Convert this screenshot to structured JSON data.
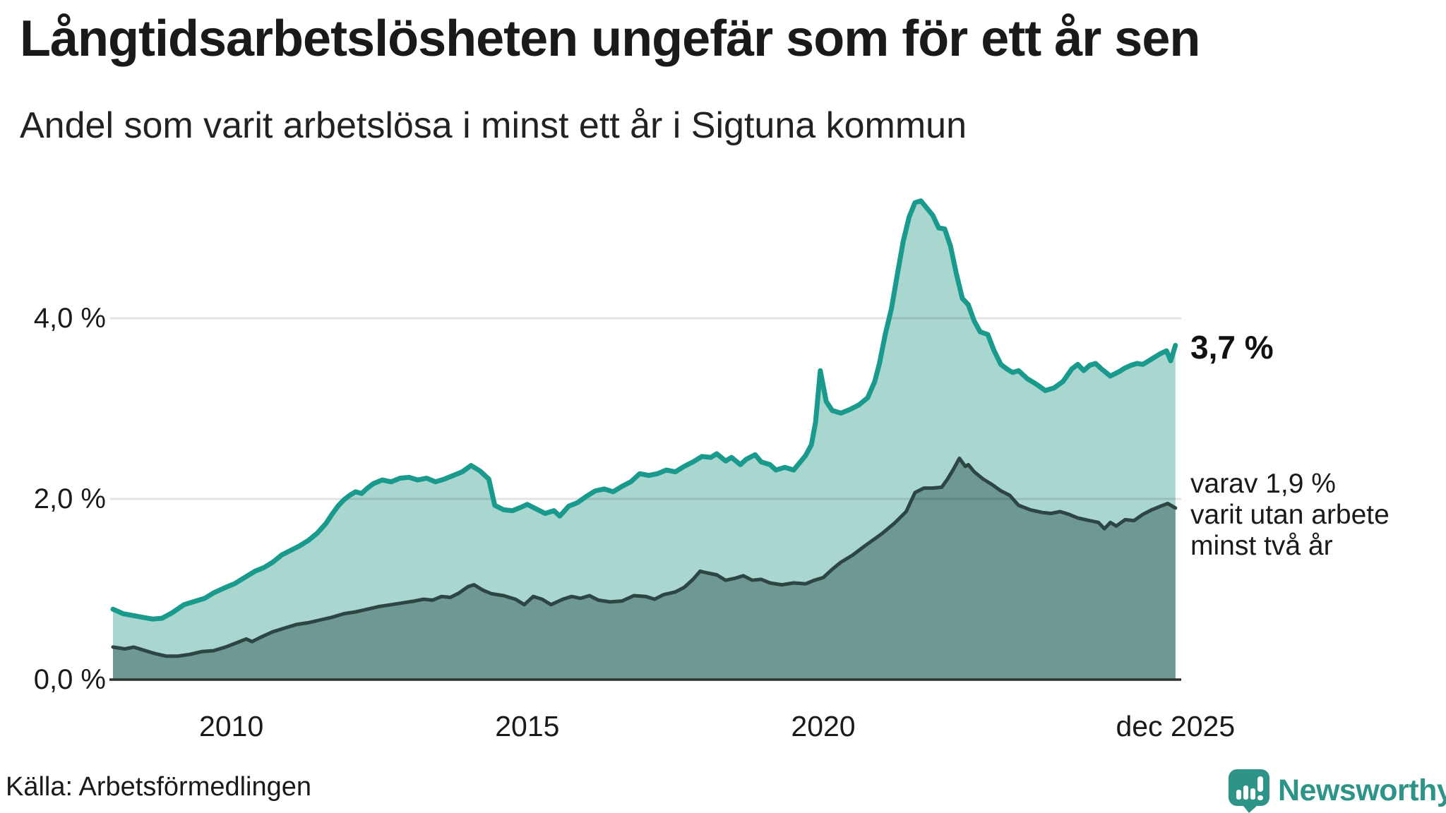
{
  "header": {
    "title": "Långtidsarbetslösheten ungefär som för ett år sen",
    "subtitle": "Andel som varit arbetslösa i minst ett år i Sigtuna kommun"
  },
  "annotations": {
    "latest_value": "3,7 %",
    "secondary": "varav 1,9 %\nvarit utan arbete\nminst två år"
  },
  "source": {
    "label": "Källa: Arbetsförmedlingen"
  },
  "branding": {
    "name": "Newsworthy",
    "icon": "bar-chart-speech-bubble-icon",
    "color": "#2e9488"
  },
  "colors": {
    "line_one_year": "#1a9a8d",
    "fill_one_year": "#a9d6cf",
    "line_two_years": "#2d4643",
    "fill_two_years": "#6d9992",
    "gridline": "rgba(0,0,0,0.11)",
    "baseline": "#2e3230",
    "text": "#1a1a1a"
  },
  "chart_data": {
    "type": "area",
    "title": "Långtidsarbetslösheten ungefär som för ett år sen",
    "subtitle": "Andel som varit arbetslösa i minst ett år i Sigtuna kommun",
    "unit": "%",
    "grid": "horizontal",
    "legend_position": "none",
    "x_axis": {
      "range": [
        2008.0,
        2026.0
      ],
      "ticks": [
        {
          "x": 2010.0,
          "label": "2010"
        },
        {
          "x": 2015.0,
          "label": "2015"
        },
        {
          "x": 2020.0,
          "label": "2020"
        },
        {
          "x": 2025.95,
          "label": "dec 2025"
        }
      ]
    },
    "y_axis": {
      "range": [
        0,
        6.0
      ],
      "gridlines": [
        2.0,
        4.0
      ],
      "ticks": [
        {
          "v": 0.0,
          "label": "0,0 %"
        },
        {
          "v": 2.0,
          "label": "2,0 %"
        },
        {
          "v": 4.0,
          "label": "4,0 %"
        }
      ]
    },
    "series": [
      {
        "name": "Arbetslösa minst ett år",
        "latest_value": 3.7,
        "latest_label": "3,7 %",
        "points": [
          [
            2008.0,
            0.78
          ],
          [
            2008.17,
            0.73
          ],
          [
            2008.33,
            0.71
          ],
          [
            2008.5,
            0.69
          ],
          [
            2008.67,
            0.67
          ],
          [
            2008.83,
            0.68
          ],
          [
            2009.0,
            0.74
          ],
          [
            2009.2,
            0.83
          ],
          [
            2009.4,
            0.87
          ],
          [
            2009.55,
            0.9
          ],
          [
            2009.7,
            0.96
          ],
          [
            2009.9,
            1.02
          ],
          [
            2010.05,
            1.06
          ],
          [
            2010.2,
            1.12
          ],
          [
            2010.4,
            1.2
          ],
          [
            2010.55,
            1.24
          ],
          [
            2010.7,
            1.3
          ],
          [
            2010.85,
            1.38
          ],
          [
            2011.0,
            1.43
          ],
          [
            2011.15,
            1.48
          ],
          [
            2011.3,
            1.54
          ],
          [
            2011.45,
            1.62
          ],
          [
            2011.6,
            1.73
          ],
          [
            2011.7,
            1.83
          ],
          [
            2011.8,
            1.92
          ],
          [
            2011.9,
            1.99
          ],
          [
            2012.0,
            2.04
          ],
          [
            2012.1,
            2.08
          ],
          [
            2012.2,
            2.06
          ],
          [
            2012.3,
            2.12
          ],
          [
            2012.4,
            2.17
          ],
          [
            2012.55,
            2.21
          ],
          [
            2012.7,
            2.19
          ],
          [
            2012.85,
            2.23
          ],
          [
            2013.0,
            2.24
          ],
          [
            2013.15,
            2.21
          ],
          [
            2013.3,
            2.23
          ],
          [
            2013.45,
            2.19
          ],
          [
            2013.6,
            2.22
          ],
          [
            2013.75,
            2.26
          ],
          [
            2013.9,
            2.3
          ],
          [
            2014.05,
            2.37
          ],
          [
            2014.2,
            2.31
          ],
          [
            2014.35,
            2.22
          ],
          [
            2014.45,
            1.93
          ],
          [
            2014.6,
            1.88
          ],
          [
            2014.75,
            1.87
          ],
          [
            2014.9,
            1.91
          ],
          [
            2015.0,
            1.94
          ],
          [
            2015.15,
            1.89
          ],
          [
            2015.3,
            1.84
          ],
          [
            2015.45,
            1.87
          ],
          [
            2015.55,
            1.81
          ],
          [
            2015.7,
            1.92
          ],
          [
            2015.85,
            1.96
          ],
          [
            2016.0,
            2.03
          ],
          [
            2016.15,
            2.09
          ],
          [
            2016.3,
            2.11
          ],
          [
            2016.45,
            2.08
          ],
          [
            2016.6,
            2.14
          ],
          [
            2016.75,
            2.19
          ],
          [
            2016.9,
            2.28
          ],
          [
            2017.05,
            2.26
          ],
          [
            2017.2,
            2.28
          ],
          [
            2017.35,
            2.32
          ],
          [
            2017.5,
            2.3
          ],
          [
            2017.65,
            2.36
          ],
          [
            2017.8,
            2.41
          ],
          [
            2017.95,
            2.47
          ],
          [
            2018.1,
            2.46
          ],
          [
            2018.2,
            2.5
          ],
          [
            2018.35,
            2.42
          ],
          [
            2018.45,
            2.46
          ],
          [
            2018.6,
            2.38
          ],
          [
            2018.7,
            2.44
          ],
          [
            2018.85,
            2.49
          ],
          [
            2018.95,
            2.41
          ],
          [
            2019.1,
            2.38
          ],
          [
            2019.2,
            2.32
          ],
          [
            2019.35,
            2.35
          ],
          [
            2019.5,
            2.32
          ],
          [
            2019.6,
            2.4
          ],
          [
            2019.7,
            2.48
          ],
          [
            2019.8,
            2.6
          ],
          [
            2019.87,
            2.85
          ],
          [
            2019.95,
            3.42
          ],
          [
            2020.05,
            3.08
          ],
          [
            2020.15,
            2.98
          ],
          [
            2020.3,
            2.95
          ],
          [
            2020.45,
            2.99
          ],
          [
            2020.6,
            3.04
          ],
          [
            2020.75,
            3.12
          ],
          [
            2020.87,
            3.3
          ],
          [
            2020.95,
            3.5
          ],
          [
            2021.05,
            3.83
          ],
          [
            2021.15,
            4.1
          ],
          [
            2021.25,
            4.48
          ],
          [
            2021.35,
            4.85
          ],
          [
            2021.45,
            5.12
          ],
          [
            2021.55,
            5.28
          ],
          [
            2021.65,
            5.3
          ],
          [
            2021.75,
            5.22
          ],
          [
            2021.85,
            5.14
          ],
          [
            2021.95,
            5.0
          ],
          [
            2022.05,
            4.99
          ],
          [
            2022.15,
            4.8
          ],
          [
            2022.25,
            4.49
          ],
          [
            2022.35,
            4.22
          ],
          [
            2022.45,
            4.15
          ],
          [
            2022.55,
            3.97
          ],
          [
            2022.65,
            3.85
          ],
          [
            2022.78,
            3.82
          ],
          [
            2022.88,
            3.65
          ],
          [
            2023.0,
            3.49
          ],
          [
            2023.1,
            3.44
          ],
          [
            2023.2,
            3.4
          ],
          [
            2023.3,
            3.42
          ],
          [
            2023.45,
            3.33
          ],
          [
            2023.6,
            3.27
          ],
          [
            2023.75,
            3.2
          ],
          [
            2023.9,
            3.23
          ],
          [
            2024.05,
            3.3
          ],
          [
            2024.2,
            3.44
          ],
          [
            2024.3,
            3.49
          ],
          [
            2024.4,
            3.42
          ],
          [
            2024.5,
            3.48
          ],
          [
            2024.6,
            3.5
          ],
          [
            2024.7,
            3.44
          ],
          [
            2024.85,
            3.36
          ],
          [
            2025.0,
            3.41
          ],
          [
            2025.1,
            3.45
          ],
          [
            2025.2,
            3.48
          ],
          [
            2025.3,
            3.5
          ],
          [
            2025.4,
            3.49
          ],
          [
            2025.5,
            3.53
          ],
          [
            2025.6,
            3.57
          ],
          [
            2025.7,
            3.61
          ],
          [
            2025.8,
            3.64
          ],
          [
            2025.87,
            3.53
          ],
          [
            2025.95,
            3.7
          ]
        ]
      },
      {
        "name": "Arbetslösa minst två år",
        "latest_value": 1.9,
        "latest_label": "1,9 %",
        "points": [
          [
            2008.0,
            0.36
          ],
          [
            2008.2,
            0.34
          ],
          [
            2008.35,
            0.36
          ],
          [
            2008.5,
            0.33
          ],
          [
            2008.7,
            0.29
          ],
          [
            2008.9,
            0.26
          ],
          [
            2009.1,
            0.26
          ],
          [
            2009.3,
            0.28
          ],
          [
            2009.5,
            0.31
          ],
          [
            2009.7,
            0.32
          ],
          [
            2009.9,
            0.36
          ],
          [
            2010.1,
            0.41
          ],
          [
            2010.25,
            0.45
          ],
          [
            2010.35,
            0.42
          ],
          [
            2010.5,
            0.47
          ],
          [
            2010.7,
            0.53
          ],
          [
            2010.9,
            0.57
          ],
          [
            2011.1,
            0.61
          ],
          [
            2011.3,
            0.63
          ],
          [
            2011.5,
            0.66
          ],
          [
            2011.7,
            0.69
          ],
          [
            2011.9,
            0.73
          ],
          [
            2012.1,
            0.75
          ],
          [
            2012.3,
            0.78
          ],
          [
            2012.5,
            0.81
          ],
          [
            2012.7,
            0.83
          ],
          [
            2012.9,
            0.85
          ],
          [
            2013.1,
            0.87
          ],
          [
            2013.25,
            0.89
          ],
          [
            2013.4,
            0.88
          ],
          [
            2013.55,
            0.92
          ],
          [
            2013.7,
            0.91
          ],
          [
            2013.85,
            0.96
          ],
          [
            2014.0,
            1.03
          ],
          [
            2014.1,
            1.05
          ],
          [
            2014.25,
            0.99
          ],
          [
            2014.4,
            0.95
          ],
          [
            2014.6,
            0.93
          ],
          [
            2014.8,
            0.89
          ],
          [
            2014.95,
            0.83
          ],
          [
            2015.1,
            0.92
          ],
          [
            2015.25,
            0.89
          ],
          [
            2015.4,
            0.83
          ],
          [
            2015.6,
            0.89
          ],
          [
            2015.75,
            0.92
          ],
          [
            2015.9,
            0.9
          ],
          [
            2016.05,
            0.93
          ],
          [
            2016.2,
            0.88
          ],
          [
            2016.4,
            0.86
          ],
          [
            2016.6,
            0.87
          ],
          [
            2016.8,
            0.93
          ],
          [
            2017.0,
            0.92
          ],
          [
            2017.15,
            0.89
          ],
          [
            2017.3,
            0.94
          ],
          [
            2017.5,
            0.97
          ],
          [
            2017.65,
            1.02
          ],
          [
            2017.8,
            1.11
          ],
          [
            2017.92,
            1.2
          ],
          [
            2018.05,
            1.18
          ],
          [
            2018.2,
            1.16
          ],
          [
            2018.35,
            1.1
          ],
          [
            2018.5,
            1.12
          ],
          [
            2018.65,
            1.15
          ],
          [
            2018.8,
            1.1
          ],
          [
            2018.95,
            1.11
          ],
          [
            2019.1,
            1.07
          ],
          [
            2019.3,
            1.05
          ],
          [
            2019.5,
            1.07
          ],
          [
            2019.7,
            1.06
          ],
          [
            2019.85,
            1.1
          ],
          [
            2020.0,
            1.13
          ],
          [
            2020.15,
            1.22
          ],
          [
            2020.3,
            1.3
          ],
          [
            2020.5,
            1.38
          ],
          [
            2020.7,
            1.48
          ],
          [
            2020.85,
            1.55
          ],
          [
            2021.0,
            1.62
          ],
          [
            2021.2,
            1.73
          ],
          [
            2021.4,
            1.86
          ],
          [
            2021.55,
            2.07
          ],
          [
            2021.7,
            2.12
          ],
          [
            2021.85,
            2.12
          ],
          [
            2022.0,
            2.13
          ],
          [
            2022.1,
            2.22
          ],
          [
            2022.2,
            2.33
          ],
          [
            2022.3,
            2.45
          ],
          [
            2022.4,
            2.36
          ],
          [
            2022.45,
            2.38
          ],
          [
            2022.55,
            2.3
          ],
          [
            2022.7,
            2.22
          ],
          [
            2022.85,
            2.16
          ],
          [
            2023.0,
            2.09
          ],
          [
            2023.15,
            2.04
          ],
          [
            2023.3,
            1.93
          ],
          [
            2023.5,
            1.88
          ],
          [
            2023.7,
            1.85
          ],
          [
            2023.85,
            1.84
          ],
          [
            2024.0,
            1.86
          ],
          [
            2024.15,
            1.83
          ],
          [
            2024.3,
            1.79
          ],
          [
            2024.5,
            1.76
          ],
          [
            2024.65,
            1.74
          ],
          [
            2024.75,
            1.67
          ],
          [
            2024.85,
            1.74
          ],
          [
            2024.95,
            1.7
          ],
          [
            2025.1,
            1.77
          ],
          [
            2025.25,
            1.76
          ],
          [
            2025.4,
            1.83
          ],
          [
            2025.55,
            1.88
          ],
          [
            2025.7,
            1.92
          ],
          [
            2025.82,
            1.95
          ],
          [
            2025.95,
            1.9
          ]
        ]
      }
    ]
  }
}
